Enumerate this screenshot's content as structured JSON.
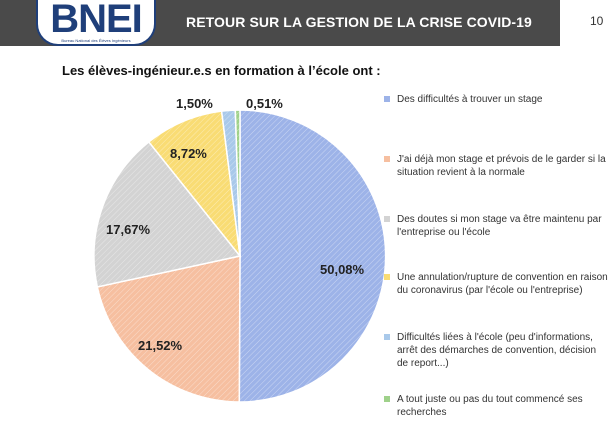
{
  "header": {
    "logo_text": "BNEI",
    "logo_subtitle": "Bureau National des Élèves Ingénieurs",
    "title": "RETOUR SUR LA GESTION DE LA CRISE COVID-19",
    "page_number": "10"
  },
  "chart_data": {
    "type": "pie",
    "title": "Les élèves-ingénieur.e.s en formation à l’école ont :",
    "slices": [
      {
        "label": "Des difficultés à trouver un stage",
        "value": 50.08,
        "display": "50,08%",
        "color": "#9db3e8"
      },
      {
        "label": "J'ai déjà mon stage et prévois de le garder si la situation revient à la normale",
        "value": 21.52,
        "display": "21,52%",
        "color": "#f6bfa0"
      },
      {
        "label": "Des doutes si mon stage va être maintenu par l'entreprise ou l'école",
        "value": 17.67,
        "display": "17,67%",
        "color": "#d3d3d3"
      },
      {
        "label": "Une annulation/rupture de convention en raison du coronavirus (par l'école ou l'entreprise)",
        "value": 8.72,
        "display": "8,72%",
        "color": "#f9dc74"
      },
      {
        "label": "Difficultés liées à l'école (peu d'informations, arrêt des démarches de convention, décision de report...)",
        "value": 1.5,
        "display": "1,50%",
        "color": "#a9c9ea"
      },
      {
        "label": "A tout juste ou pas du tout commencé ses recherches",
        "value": 0.51,
        "display": "0,51%",
        "color": "#9fd18a"
      }
    ],
    "legend_position": "right"
  }
}
